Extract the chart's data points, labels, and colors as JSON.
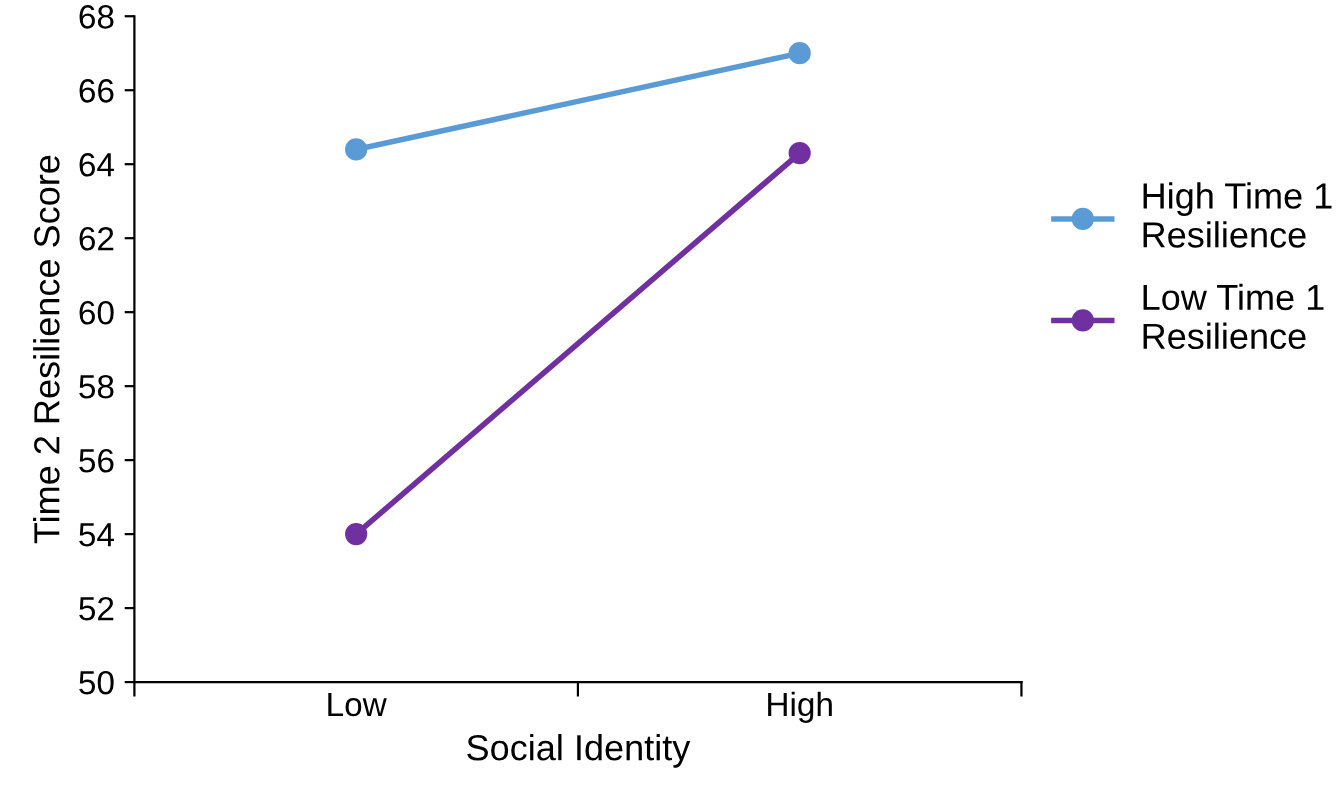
{
  "chart_data": {
    "type": "line",
    "xlabel": "Social Identity",
    "ylabel": "Time 2 Resilience Score",
    "categories": [
      "Low",
      "High"
    ],
    "series": [
      {
        "name": "High Time 1\nResilience",
        "color": "#5b9bd5",
        "values": [
          64.4,
          67.0
        ]
      },
      {
        "name": "Low Time 1\nResilience",
        "color": "#7030a0",
        "values": [
          54.0,
          64.3
        ]
      }
    ],
    "ylim": [
      50,
      68
    ],
    "yticks": [
      50,
      52,
      54,
      56,
      58,
      60,
      62,
      64,
      66,
      68
    ],
    "grid": false,
    "legend": "right",
    "marker": "circle",
    "line_style": "solid"
  }
}
